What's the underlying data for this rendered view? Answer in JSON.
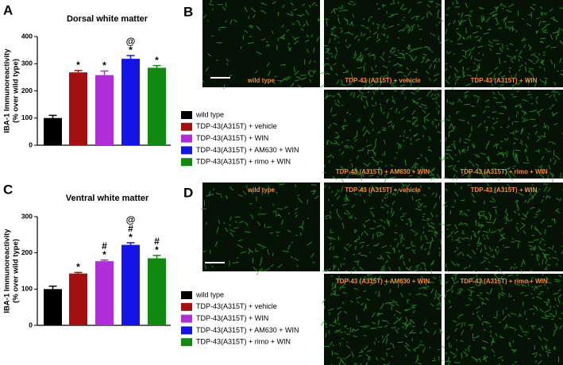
{
  "chart_data": [
    {
      "type": "bar",
      "panel": "A",
      "title": "Dorsal white matter",
      "ylabel": [
        "IBA-1 Immunoreactivity",
        "(% over wild type)"
      ],
      "categories": [
        "wild type",
        "TDP-43(A315T) + vehicle",
        "TDP-43(A315T) + WIN",
        "TDP-43(A315T) + AM630 + WIN",
        "TDP-43(A315T) + rimo + WIN"
      ],
      "colors": [
        "#000000",
        "#a3100f",
        "#b02ed8",
        "#1414e6",
        "#128a12"
      ],
      "values": [
        100,
        268,
        258,
        318,
        285
      ],
      "errors": [
        10,
        7,
        15,
        12,
        8
      ],
      "annotations": [
        [],
        [
          "*"
        ],
        [
          "*"
        ],
        [
          "@",
          "*"
        ],
        [
          "*"
        ]
      ],
      "ylim": [
        0,
        400
      ],
      "yticks": [
        0,
        100,
        200,
        300,
        400
      ]
    },
    {
      "type": "bar",
      "panel": "C",
      "title": "Ventral white matter",
      "ylabel": [
        "IBA-1 Immunoreactivity",
        "(% over wild type)"
      ],
      "categories": [
        "wild type",
        "TDP-43(A315T) + vehicle",
        "TDP-43(A315T) + WIN",
        "TDP-43(A315T) + AM630 + WIN",
        "TDP-43(A315T) + rimo + WIN"
      ],
      "colors": [
        "#000000",
        "#a3100f",
        "#b02ed8",
        "#1414e6",
        "#128a12"
      ],
      "values": [
        100,
        143,
        177,
        222,
        185
      ],
      "errors": [
        8,
        3,
        3,
        6,
        8
      ],
      "annotations": [
        [],
        [
          "*"
        ],
        [
          "#",
          "*"
        ],
        [
          "@",
          "#",
          "*"
        ],
        [
          "#",
          "*"
        ]
      ],
      "ylim": [
        0,
        300
      ],
      "yticks": [
        0,
        100,
        200,
        300
      ]
    }
  ],
  "images": [
    {
      "panel": "B",
      "captions": [
        "wild type",
        "TDP-43 (A315T) + vehicle",
        "TDP-43 (A315T) + WIN",
        "TDP-43 (A315T) + AM630 + WIN",
        "TDP-43 (A315T) + rimo + WIN"
      ]
    },
    {
      "panel": "D",
      "captions": [
        "wild type",
        "TDP-43 (A315T) + vehicle",
        "TDP-43 (A315T) + WIN",
        "TDP-43 (A315T) + AM630 + WIN",
        "TDP-43 (A315T) + rimo + WIN"
      ]
    }
  ]
}
